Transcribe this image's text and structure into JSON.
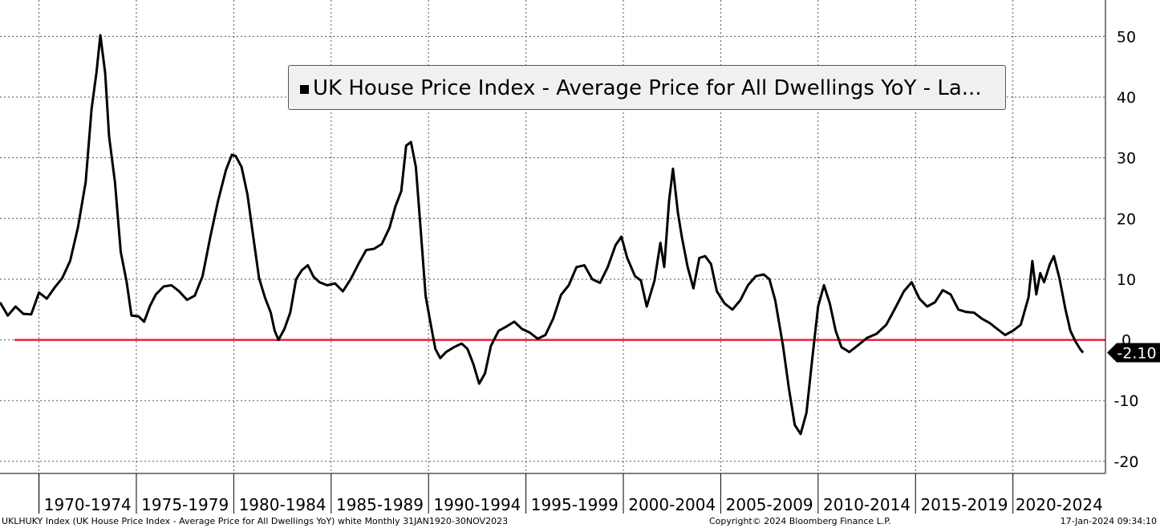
{
  "chart_data": {
    "type": "line",
    "title": "UK House Price Index - Average Price for All Dwellings YoY - La...",
    "series": [
      {
        "name": "UK House Price Index - Average Price for All Dwellings YoY - La...",
        "color": "#000000",
        "points": [
          [
            1968.0,
            6.2
          ],
          [
            1968.4,
            4.0
          ],
          [
            1968.8,
            5.5
          ],
          [
            1969.2,
            4.3
          ],
          [
            1969.6,
            4.2
          ],
          [
            1970.0,
            7.8
          ],
          [
            1970.4,
            6.8
          ],
          [
            1970.8,
            8.6
          ],
          [
            1971.2,
            10.2
          ],
          [
            1971.6,
            13.0
          ],
          [
            1972.0,
            18.5
          ],
          [
            1972.4,
            26.0
          ],
          [
            1972.7,
            38.0
          ],
          [
            1972.95,
            44.0
          ],
          [
            1973.15,
            50.2
          ],
          [
            1973.4,
            44.0
          ],
          [
            1973.6,
            33.5
          ],
          [
            1973.9,
            26.0
          ],
          [
            1974.2,
            14.5
          ],
          [
            1974.5,
            9.6
          ],
          [
            1974.75,
            4.0
          ],
          [
            1975.1,
            3.9
          ],
          [
            1975.4,
            3.0
          ],
          [
            1975.7,
            5.6
          ],
          [
            1976.0,
            7.5
          ],
          [
            1976.4,
            8.8
          ],
          [
            1976.8,
            9.0
          ],
          [
            1977.2,
            8.0
          ],
          [
            1977.6,
            6.6
          ],
          [
            1978.0,
            7.3
          ],
          [
            1978.4,
            10.5
          ],
          [
            1978.8,
            17.0
          ],
          [
            1979.2,
            23.0
          ],
          [
            1979.6,
            28.0
          ],
          [
            1979.9,
            30.5
          ],
          [
            1980.1,
            30.3
          ],
          [
            1980.4,
            28.5
          ],
          [
            1980.7,
            24.0
          ],
          [
            1981.0,
            17.0
          ],
          [
            1981.3,
            10.2
          ],
          [
            1981.6,
            7.0
          ],
          [
            1981.9,
            4.5
          ],
          [
            1982.1,
            1.5
          ],
          [
            1982.3,
            0.0
          ],
          [
            1982.6,
            1.8
          ],
          [
            1982.9,
            4.5
          ],
          [
            1983.2,
            10.0
          ],
          [
            1983.5,
            11.5
          ],
          [
            1983.8,
            12.3
          ],
          [
            1984.1,
            10.4
          ],
          [
            1984.4,
            9.5
          ],
          [
            1984.8,
            9.0
          ],
          [
            1985.2,
            9.3
          ],
          [
            1985.6,
            8.0
          ],
          [
            1986.0,
            10.0
          ],
          [
            1986.4,
            12.5
          ],
          [
            1986.8,
            14.8
          ],
          [
            1987.2,
            15.0
          ],
          [
            1987.6,
            15.8
          ],
          [
            1988.0,
            18.5
          ],
          [
            1988.3,
            22.0
          ],
          [
            1988.6,
            24.5
          ],
          [
            1988.85,
            32.0
          ],
          [
            1989.1,
            32.6
          ],
          [
            1989.35,
            28.5
          ],
          [
            1989.6,
            18.0
          ],
          [
            1989.85,
            7.2
          ],
          [
            1990.1,
            2.8
          ],
          [
            1990.35,
            -1.5
          ],
          [
            1990.6,
            -3.0
          ],
          [
            1990.9,
            -2.0
          ],
          [
            1991.3,
            -1.2
          ],
          [
            1991.7,
            -0.6
          ],
          [
            1992.0,
            -1.5
          ],
          [
            1992.3,
            -4.0
          ],
          [
            1992.6,
            -7.2
          ],
          [
            1992.9,
            -5.5
          ],
          [
            1993.2,
            -1.0
          ],
          [
            1993.6,
            1.5
          ],
          [
            1994.0,
            2.2
          ],
          [
            1994.4,
            3.0
          ],
          [
            1994.8,
            1.8
          ],
          [
            1995.2,
            1.2
          ],
          [
            1995.6,
            0.2
          ],
          [
            1996.0,
            0.8
          ],
          [
            1996.4,
            3.5
          ],
          [
            1996.8,
            7.4
          ],
          [
            1997.2,
            9.0
          ],
          [
            1997.6,
            12.0
          ],
          [
            1998.0,
            12.3
          ],
          [
            1998.4,
            10.0
          ],
          [
            1998.8,
            9.4
          ],
          [
            1999.2,
            12.0
          ],
          [
            1999.6,
            15.6
          ],
          [
            1999.9,
            17.0
          ],
          [
            2000.2,
            13.5
          ],
          [
            2000.6,
            10.5
          ],
          [
            2000.9,
            9.8
          ],
          [
            2001.2,
            5.5
          ],
          [
            2001.6,
            9.8
          ],
          [
            2001.9,
            16.0
          ],
          [
            2002.1,
            12.0
          ],
          [
            2002.35,
            23.0
          ],
          [
            2002.55,
            28.2
          ],
          [
            2002.8,
            21.0
          ],
          [
            2003.0,
            17.0
          ],
          [
            2003.3,
            12.0
          ],
          [
            2003.6,
            8.5
          ],
          [
            2003.9,
            13.5
          ],
          [
            2004.2,
            13.8
          ],
          [
            2004.5,
            12.5
          ],
          [
            2004.8,
            8.0
          ],
          [
            2005.2,
            6.0
          ],
          [
            2005.6,
            5.0
          ],
          [
            2006.0,
            6.5
          ],
          [
            2006.4,
            9.0
          ],
          [
            2006.8,
            10.5
          ],
          [
            2007.2,
            10.8
          ],
          [
            2007.5,
            10.0
          ],
          [
            2007.8,
            6.5
          ],
          [
            2008.2,
            -1.0
          ],
          [
            2008.5,
            -8.0
          ],
          [
            2008.8,
            -14.0
          ],
          [
            2009.1,
            -15.5
          ],
          [
            2009.4,
            -12.0
          ],
          [
            2009.7,
            -3.0
          ],
          [
            2010.0,
            5.5
          ],
          [
            2010.3,
            9.0
          ],
          [
            2010.6,
            6.0
          ],
          [
            2010.9,
            1.5
          ],
          [
            2011.2,
            -1.2
          ],
          [
            2011.6,
            -2.0
          ],
          [
            2012.0,
            -1.0
          ],
          [
            2012.5,
            0.3
          ],
          [
            2013.0,
            1.0
          ],
          [
            2013.5,
            2.5
          ],
          [
            2014.0,
            5.5
          ],
          [
            2014.4,
            8.0
          ],
          [
            2014.8,
            9.5
          ],
          [
            2015.2,
            6.8
          ],
          [
            2015.6,
            5.5
          ],
          [
            2016.0,
            6.2
          ],
          [
            2016.4,
            8.2
          ],
          [
            2016.8,
            7.5
          ],
          [
            2017.2,
            5.0
          ],
          [
            2017.6,
            4.6
          ],
          [
            2018.0,
            4.5
          ],
          [
            2018.4,
            3.5
          ],
          [
            2018.8,
            2.8
          ],
          [
            2019.2,
            1.8
          ],
          [
            2019.6,
            0.8
          ],
          [
            2020.0,
            1.5
          ],
          [
            2020.4,
            2.5
          ],
          [
            2020.8,
            7.0
          ],
          [
            2021.0,
            13.0
          ],
          [
            2021.2,
            7.5
          ],
          [
            2021.4,
            11.0
          ],
          [
            2021.6,
            9.5
          ],
          [
            2021.9,
            12.5
          ],
          [
            2022.1,
            13.8
          ],
          [
            2022.4,
            10.0
          ],
          [
            2022.7,
            5.0
          ],
          [
            2022.95,
            1.5
          ],
          [
            2023.2,
            -0.2
          ],
          [
            2023.45,
            -1.5
          ],
          [
            2023.6,
            -2.1
          ]
        ]
      }
    ],
    "reference_line": {
      "value": 0,
      "color": "#e4223b"
    },
    "last_value_label": "-2.10",
    "x_range": [
      1968,
      2024.75
    ],
    "x_categories": [
      {
        "label": "1970-1974",
        "start": 1970,
        "end": 1975
      },
      {
        "label": "1975-1979",
        "start": 1975,
        "end": 1980
      },
      {
        "label": "1980-1984",
        "start": 1980,
        "end": 1985
      },
      {
        "label": "1985-1989",
        "start": 1985,
        "end": 1990
      },
      {
        "label": "1990-1994",
        "start": 1990,
        "end": 1995
      },
      {
        "label": "1995-1999",
        "start": 1995,
        "end": 2000
      },
      {
        "label": "2000-2004",
        "start": 2000,
        "end": 2005
      },
      {
        "label": "2005-2009",
        "start": 2005,
        "end": 2010
      },
      {
        "label": "2010-2014",
        "start": 2010,
        "end": 2015
      },
      {
        "label": "2015-2019",
        "start": 2015,
        "end": 2020
      },
      {
        "label": "2020-2024",
        "start": 2020,
        "end": 2025
      }
    ],
    "y_ticks": [
      50,
      40,
      30,
      20,
      10,
      0,
      -10,
      -20
    ],
    "ylim": [
      -22,
      56
    ],
    "grid": true,
    "legend_position": "top-center"
  },
  "footer": {
    "left": "UKLHUKY Index (UK House Price Index - Average Price for All Dwellings YoY) white  Monthly 31JAN1920-30NOV2023",
    "center": "Copyright© 2024 Bloomberg Finance L.P.",
    "right": "17-Jan-2024 09:34:10"
  }
}
